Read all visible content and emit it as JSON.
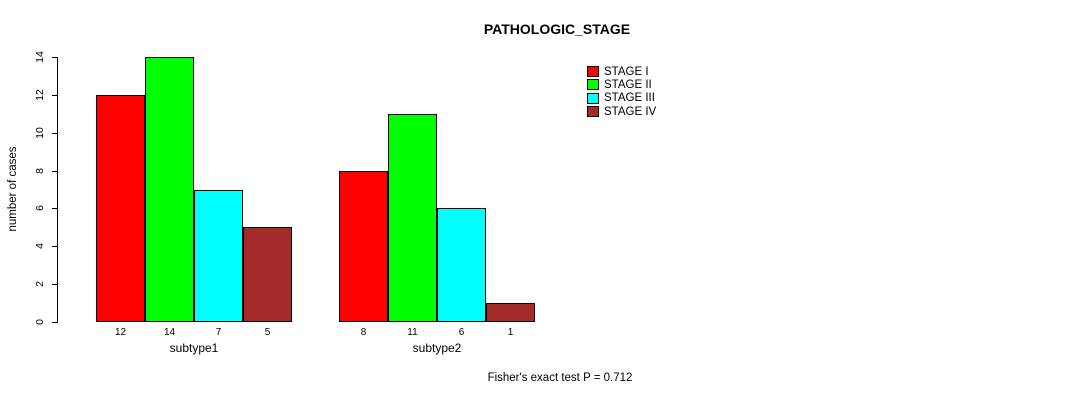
{
  "title": "PATHOLOGIC_STAGE",
  "footer": "Fisher's exact test P = 0.712",
  "chart_data": {
    "type": "bar",
    "title": "PATHOLOGIC_STAGE",
    "xlabel": "",
    "ylabel": "number of cases",
    "categories": [
      "subtype1",
      "subtype2"
    ],
    "series": [
      {
        "name": "STAGE I",
        "color": "#ff0000",
        "values": [
          12,
          8
        ]
      },
      {
        "name": "STAGE II",
        "color": "#00ff00",
        "values": [
          14,
          11
        ]
      },
      {
        "name": "STAGE III",
        "color": "#00ffff",
        "values": [
          7,
          6
        ]
      },
      {
        "name": "STAGE IV",
        "color": "#a52a2a",
        "values": [
          5,
          1
        ]
      }
    ],
    "ylim": [
      0,
      14
    ],
    "yticks": [
      0,
      2,
      4,
      6,
      8,
      10,
      12,
      14
    ],
    "bar_value_labels": true,
    "grid": false,
    "legend_position": "top-right",
    "annotation": "Fisher's exact test P = 0.712",
    "bar_border_color": "#000000",
    "background_color": "#ffffff"
  }
}
